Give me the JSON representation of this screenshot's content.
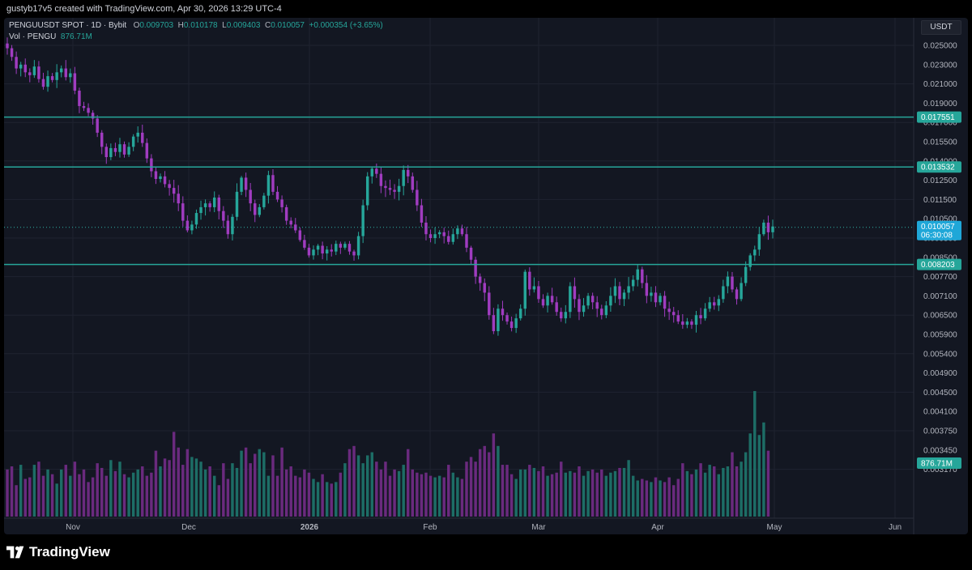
{
  "header": {
    "caption": "gustyb17v5 created with TradingView.com, Apr 30, 2026 13:29 UTC-4"
  },
  "legend": {
    "symbol": "PENGUUSDT SPOT · 1D · Bybit",
    "o_key": "O",
    "o_val": "0.009703",
    "h_key": "H",
    "h_val": "0.010178",
    "l_key": "L",
    "l_val": "0.009403",
    "c_key": "C",
    "c_val": "0.010057",
    "change": "+0.000354 (+3.65%)",
    "vol_label": "Vol · PENGU",
    "vol_val": "876.71M"
  },
  "unit_label": "USDT",
  "footer": {
    "brand": "TradingView"
  },
  "colors": {
    "up": "#26a69a",
    "down": "#a03cc0",
    "up_vol": "#1d6d66",
    "down_vol": "#6a2a7e",
    "hline": "#26a69a",
    "bg": "#131722",
    "grid": "#1f2330"
  },
  "chart_data": {
    "type": "candlestick",
    "x_axis_labels": [
      "Nov",
      "Dec",
      "2026",
      "Feb",
      "Mar",
      "Apr",
      "May",
      "Jun"
    ],
    "y_ticks": [
      "0.025000",
      "0.023000",
      "0.021000",
      "0.019000",
      "0.017000",
      "0.015500",
      "0.014000",
      "0.012500",
      "0.011500",
      "0.010500",
      "0.009500",
      "0.008500",
      "0.007700",
      "0.007100",
      "0.006500",
      "0.005900",
      "0.005400",
      "0.004900",
      "0.004500",
      "0.004100",
      "0.003750",
      "0.003450",
      "0.003170"
    ],
    "horizontal_lines": [
      {
        "value": "0.017551"
      },
      {
        "value": "0.013532"
      },
      {
        "value": "0.008203"
      }
    ],
    "last_price": {
      "value": "0.010057",
      "countdown": "06:30:08"
    },
    "last_volume": "876.71M",
    "price_path": [
      0.0247,
      0.0238,
      0.0226,
      0.023,
      0.0222,
      0.0219,
      0.0228,
      0.0215,
      0.0207,
      0.0218,
      0.0214,
      0.0222,
      0.0226,
      0.0217,
      0.0221,
      0.0203,
      0.0187,
      0.0185,
      0.018,
      0.0174,
      0.0162,
      0.0151,
      0.0143,
      0.015,
      0.0147,
      0.0153,
      0.0145,
      0.0151,
      0.0159,
      0.0162,
      0.0154,
      0.0142,
      0.0132,
      0.0126,
      0.0128,
      0.0123,
      0.0121,
      0.0118,
      0.0113,
      0.0104,
      0.0099,
      0.0102,
      0.0108,
      0.0111,
      0.0113,
      0.0111,
      0.0116,
      0.0109,
      0.0104,
      0.0097,
      0.0106,
      0.0119,
      0.0127,
      0.012,
      0.0113,
      0.0107,
      0.0111,
      0.0117,
      0.0129,
      0.0119,
      0.0115,
      0.0111,
      0.0104,
      0.0102,
      0.0099,
      0.0094,
      0.009,
      0.0086,
      0.0089,
      0.0091,
      0.0087,
      0.0089,
      0.0088,
      0.0092,
      0.009,
      0.0092,
      0.0088,
      0.0086,
      0.0096,
      0.0112,
      0.0128,
      0.0134,
      0.013,
      0.0122,
      0.0121,
      0.012,
      0.0119,
      0.0122,
      0.0133,
      0.0128,
      0.012,
      0.0112,
      0.0103,
      0.0097,
      0.0095,
      0.0097,
      0.0098,
      0.0096,
      0.0093,
      0.0097,
      0.01,
      0.0097,
      0.009,
      0.0084,
      0.0077,
      0.0075,
      0.0072,
      0.0065,
      0.006,
      0.0067,
      0.0065,
      0.0063,
      0.0061,
      0.0064,
      0.0067,
      0.0079,
      0.0073,
      0.0074,
      0.007,
      0.0068,
      0.0071,
      0.0069,
      0.0066,
      0.0064,
      0.0066,
      0.0074,
      0.007,
      0.0066,
      0.0068,
      0.0071,
      0.0069,
      0.0067,
      0.0065,
      0.0068,
      0.0071,
      0.0074,
      0.007,
      0.0072,
      0.0074,
      0.0076,
      0.008,
      0.0075,
      0.0071,
      0.0072,
      0.0069,
      0.0071,
      0.0067,
      0.0066,
      0.0065,
      0.0063,
      0.0062,
      0.0063,
      0.0062,
      0.0065,
      0.0064,
      0.0067,
      0.0069,
      0.0068,
      0.007,
      0.0074,
      0.0077,
      0.0073,
      0.007,
      0.0075,
      0.0081,
      0.0086,
      0.0089,
      0.0097,
      0.0103,
      0.0098,
      0.0101
    ],
    "volume_path": [
      3.0,
      3.2,
      2.0,
      3.3,
      2.4,
      2.5,
      3.3,
      3.5,
      2.6,
      3.0,
      2.7,
      2.1,
      3.0,
      3.3,
      2.6,
      3.5,
      2.7,
      3.0,
      2.2,
      2.5,
      3.4,
      3.1,
      2.6,
      3.6,
      2.9,
      3.5,
      2.7,
      2.5,
      2.8,
      3.0,
      3.2,
      2.6,
      2.8,
      4.2,
      3.2,
      3.7,
      3.6,
      5.4,
      4.4,
      3.3,
      4.3,
      3.8,
      3.7,
      3.5,
      3.0,
      3.2,
      2.6,
      2.0,
      3.4,
      2.4,
      3.4,
      3.1,
      4.2,
      4.4,
      3.4,
      4.0,
      4.3,
      4.1,
      2.6,
      3.9,
      2.6,
      4.4,
      3.0,
      3.2,
      2.6,
      2.5,
      3.0,
      2.8,
      2.4,
      2.2,
      2.7,
      2.2,
      2.1,
      2.2,
      2.8,
      3.4,
      4.3,
      4.5,
      3.9,
      3.4,
      3.9,
      4.1,
      3.5,
      3.0,
      3.5,
      2.6,
      3.0,
      2.9,
      3.3,
      4.3,
      3.0,
      2.8,
      2.7,
      2.8,
      2.6,
      2.5,
      2.6,
      2.5,
      3.3,
      2.8,
      2.5,
      2.4,
      3.5,
      3.8,
      3.5,
      4.3,
      4.5,
      4.1,
      5.3,
      4.5,
      3.3,
      3.3,
      2.7,
      2.4,
      3.0,
      3.0,
      3.3,
      3.1,
      2.9,
      3.2,
      2.6,
      2.7,
      2.8,
      3.5,
      2.8,
      2.9,
      2.8,
      3.2,
      2.6,
      2.9,
      3.0,
      2.8,
      3.0,
      2.6,
      2.8,
      2.9,
      3.1,
      3.1,
      3.6,
      2.6,
      2.3,
      2.4,
      2.3,
      2.2,
      2.5,
      2.3,
      2.2,
      2.5,
      2.0,
      2.4,
      3.4,
      2.9,
      2.7,
      3.0,
      3.4,
      2.8,
      3.3,
      3.2,
      2.7,
      3.1,
      3.2,
      4.1,
      3.2,
      3.5,
      4.1,
      5.3,
      8.0,
      5.2,
      6.0,
      4.2
    ]
  }
}
